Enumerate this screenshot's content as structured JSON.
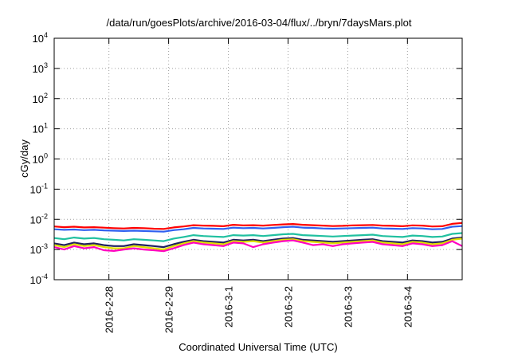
{
  "chart_data": {
    "type": "line",
    "title": "/data/run/goesPlots/archive/2016-03-04/flux/../bryn/7daysMars.plot",
    "xlabel": "Coordinated Universal Time (UTC)",
    "ylabel": "cGy/day",
    "yscale": "log",
    "ylim": [
      0.0001,
      10000
    ],
    "xlim": [
      "2016-02-27 02:00",
      "2016-03-04 22:00"
    ],
    "grid": true,
    "legend": "none",
    "x_ticks": [
      "2016-2-28",
      "2016-2-29",
      "2016-3-1",
      "2016-3-2",
      "2016-3-3",
      "2016-3-4"
    ],
    "y_ticks": [
      {
        "base": "10",
        "exp": "-4",
        "value": 0.0001
      },
      {
        "base": "10",
        "exp": "-3",
        "value": 0.001
      },
      {
        "base": "10",
        "exp": "-2",
        "value": 0.01
      },
      {
        "base": "10",
        "exp": "-1",
        "value": 0.1
      },
      {
        "base": "10",
        "exp": "0",
        "value": 1
      },
      {
        "base": "10",
        "exp": "1",
        "value": 10
      },
      {
        "base": "10",
        "exp": "2",
        "value": 100
      },
      {
        "base": "10",
        "exp": "3",
        "value": 1000
      },
      {
        "base": "10",
        "exp": "4",
        "value": 10000
      }
    ],
    "x": [
      "2016-02-27 02:00",
      "2016-02-27 06:00",
      "2016-02-27 10:00",
      "2016-02-27 14:00",
      "2016-02-27 18:00",
      "2016-02-27 22:00",
      "2016-02-28 02:00",
      "2016-02-28 06:00",
      "2016-02-28 10:00",
      "2016-02-28 14:00",
      "2016-02-28 18:00",
      "2016-02-28 22:00",
      "2016-02-29 02:00",
      "2016-02-29 06:00",
      "2016-02-29 10:00",
      "2016-02-29 14:00",
      "2016-02-29 18:00",
      "2016-02-29 22:00",
      "2016-03-01 02:00",
      "2016-03-01 06:00",
      "2016-03-01 10:00",
      "2016-03-01 14:00",
      "2016-03-01 18:00",
      "2016-03-01 22:00",
      "2016-03-02 02:00",
      "2016-03-02 06:00",
      "2016-03-02 10:00",
      "2016-03-02 14:00",
      "2016-03-02 18:00",
      "2016-03-02 22:00",
      "2016-03-03 02:00",
      "2016-03-03 06:00",
      "2016-03-03 10:00",
      "2016-03-03 14:00",
      "2016-03-03 18:00",
      "2016-03-03 22:00",
      "2016-03-04 02:00",
      "2016-03-04 06:00",
      "2016-03-04 10:00",
      "2016-03-04 14:00",
      "2016-03-04 18:00",
      "2016-03-04 22:00"
    ],
    "series": [
      {
        "color": "#ff0000",
        "values": [
          0.0058,
          0.0055,
          0.0057,
          0.0054,
          0.0055,
          0.0053,
          0.0051,
          0.005,
          0.0052,
          0.0051,
          0.0049,
          0.0048,
          0.0054,
          0.0058,
          0.0064,
          0.0062,
          0.0061,
          0.0059,
          0.0066,
          0.0063,
          0.0064,
          0.0062,
          0.0065,
          0.0068,
          0.007,
          0.0066,
          0.0064,
          0.0062,
          0.006,
          0.0061,
          0.0063,
          0.0064,
          0.0065,
          0.0062,
          0.0061,
          0.0059,
          0.0063,
          0.0062,
          0.0058,
          0.0059,
          0.0071,
          0.0076
        ]
      },
      {
        "color": "#3060f0",
        "values": [
          0.0047,
          0.0045,
          0.0046,
          0.0044,
          0.0045,
          0.0043,
          0.0042,
          0.0041,
          0.0042,
          0.0041,
          0.004,
          0.0039,
          0.0044,
          0.0047,
          0.0052,
          0.005,
          0.0049,
          0.0048,
          0.0053,
          0.0051,
          0.0052,
          0.005,
          0.0052,
          0.0055,
          0.0057,
          0.0053,
          0.0052,
          0.005,
          0.0049,
          0.005,
          0.0051,
          0.0052,
          0.0053,
          0.005,
          0.0049,
          0.0048,
          0.0051,
          0.005,
          0.0047,
          0.0048,
          0.0057,
          0.006
        ]
      },
      {
        "color": "#20c0a0",
        "values": [
          0.0024,
          0.0022,
          0.0025,
          0.0023,
          0.0024,
          0.0022,
          0.0021,
          0.002,
          0.0022,
          0.0021,
          0.002,
          0.0019,
          0.0023,
          0.0026,
          0.003,
          0.0028,
          0.0027,
          0.0026,
          0.003,
          0.0029,
          0.003,
          0.0028,
          0.003,
          0.0032,
          0.0033,
          0.003,
          0.0029,
          0.0028,
          0.0027,
          0.0028,
          0.0029,
          0.003,
          0.0031,
          0.0028,
          0.0027,
          0.0026,
          0.0029,
          0.0028,
          0.0026,
          0.0027,
          0.0033,
          0.0035
        ]
      },
      {
        "color": "#202060",
        "values": [
          0.0016,
          0.0014,
          0.0017,
          0.0015,
          0.0016,
          0.0014,
          0.0013,
          0.0013,
          0.0015,
          0.0014,
          0.0013,
          0.0012,
          0.0015,
          0.0018,
          0.0021,
          0.0019,
          0.0018,
          0.0017,
          0.0021,
          0.002,
          0.0021,
          0.0019,
          0.0021,
          0.0023,
          0.0024,
          0.0021,
          0.002,
          0.0019,
          0.0018,
          0.0019,
          0.002,
          0.0021,
          0.0022,
          0.0019,
          0.0018,
          0.0017,
          0.002,
          0.0019,
          0.0017,
          0.0018,
          0.0023,
          0.0025
        ]
      },
      {
        "color": "#e0e000",
        "values": [
          0.0014,
          0.0012,
          0.0015,
          0.0013,
          0.0014,
          0.0012,
          0.0011,
          0.0011,
          0.0013,
          0.0012,
          0.0011,
          0.001,
          0.0013,
          0.0016,
          0.0019,
          0.0017,
          0.0016,
          0.0015,
          0.0019,
          0.0018,
          0.0019,
          0.0017,
          0.0019,
          0.0021,
          0.0022,
          0.0019,
          0.0018,
          0.0017,
          0.0016,
          0.0017,
          0.0018,
          0.0019,
          0.002,
          0.0017,
          0.0016,
          0.0015,
          0.0018,
          0.0017,
          0.0015,
          0.0016,
          0.0021,
          0.0023
        ]
      },
      {
        "color": "#ff00c0",
        "values": [
          0.0012,
          0.001,
          0.0013,
          0.0011,
          0.0012,
          0.00095,
          0.0009,
          0.001,
          0.0011,
          0.001,
          0.00095,
          0.00088,
          0.0011,
          0.0014,
          0.0017,
          0.0015,
          0.0014,
          0.0013,
          0.0017,
          0.0016,
          0.0012,
          0.0015,
          0.0017,
          0.0019,
          0.002,
          0.0017,
          0.0014,
          0.0015,
          0.0013,
          0.0015,
          0.0016,
          0.0017,
          0.0018,
          0.0015,
          0.0014,
          0.0013,
          0.0016,
          0.0015,
          0.0013,
          0.0014,
          0.0019,
          0.0013
        ]
      }
    ]
  }
}
